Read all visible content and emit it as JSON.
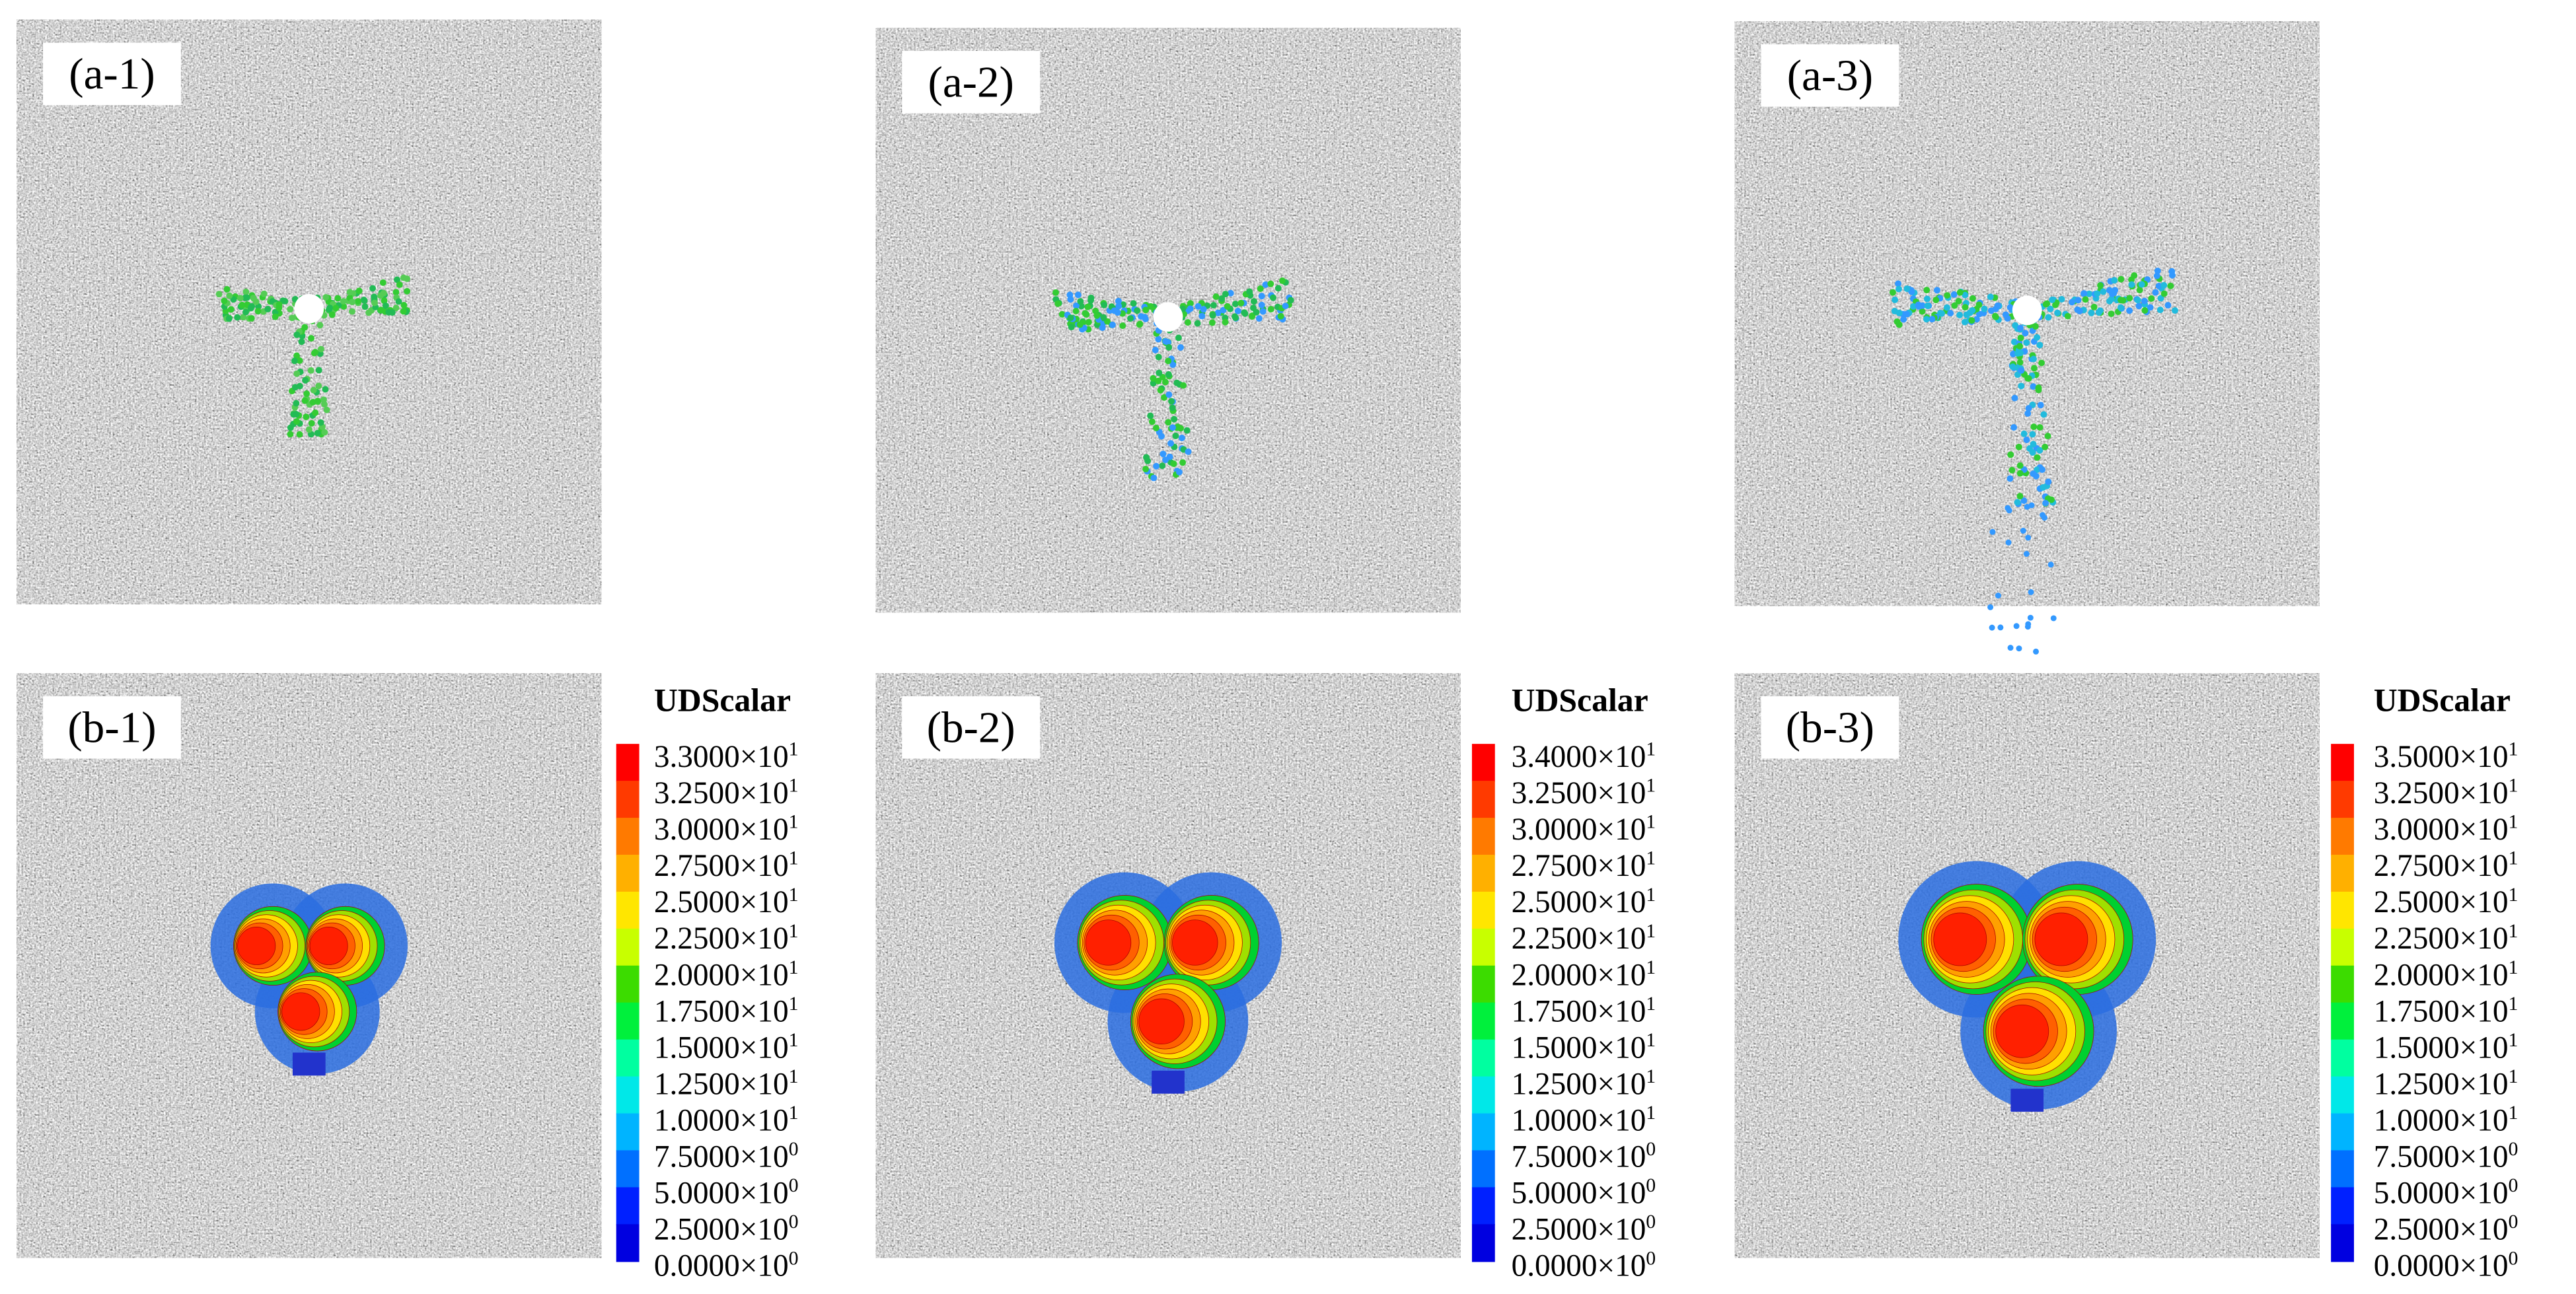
{
  "panels": [
    {
      "label": "(a-1)"
    },
    {
      "label": "(a-2)"
    },
    {
      "label": "(a-3)"
    },
    {
      "label": "(b-1)"
    },
    {
      "label": "(b-2)"
    },
    {
      "label": "(b-3)"
    }
  ],
  "colorbars": [
    {
      "title": "UDScalar",
      "ticks": [
        {
          "mantissa": "3.3000×10",
          "exponent": "1"
        },
        {
          "mantissa": "3.2500×10",
          "exponent": "1"
        },
        {
          "mantissa": "3.0000×10",
          "exponent": "1"
        },
        {
          "mantissa": "2.7500×10",
          "exponent": "1"
        },
        {
          "mantissa": "2.5000×10",
          "exponent": "1"
        },
        {
          "mantissa": "2.2500×10",
          "exponent": "1"
        },
        {
          "mantissa": "2.0000×10",
          "exponent": "1"
        },
        {
          "mantissa": "1.7500×10",
          "exponent": "1"
        },
        {
          "mantissa": "1.5000×10",
          "exponent": "1"
        },
        {
          "mantissa": "1.2500×10",
          "exponent": "1"
        },
        {
          "mantissa": "1.0000×10",
          "exponent": "1"
        },
        {
          "mantissa": "7.5000×10",
          "exponent": "0"
        },
        {
          "mantissa": "5.0000×10",
          "exponent": "0"
        },
        {
          "mantissa": "2.5000×10",
          "exponent": "0"
        },
        {
          "mantissa": "0.0000×10",
          "exponent": "0"
        }
      ]
    },
    {
      "title": "UDScalar",
      "ticks": [
        {
          "mantissa": "3.4000×10",
          "exponent": "1"
        },
        {
          "mantissa": "3.2500×10",
          "exponent": "1"
        },
        {
          "mantissa": "3.0000×10",
          "exponent": "1"
        },
        {
          "mantissa": "2.7500×10",
          "exponent": "1"
        },
        {
          "mantissa": "2.5000×10",
          "exponent": "1"
        },
        {
          "mantissa": "2.2500×10",
          "exponent": "1"
        },
        {
          "mantissa": "2.0000×10",
          "exponent": "1"
        },
        {
          "mantissa": "1.7500×10",
          "exponent": "1"
        },
        {
          "mantissa": "1.5000×10",
          "exponent": "1"
        },
        {
          "mantissa": "1.2500×10",
          "exponent": "1"
        },
        {
          "mantissa": "1.0000×10",
          "exponent": "1"
        },
        {
          "mantissa": "7.5000×10",
          "exponent": "0"
        },
        {
          "mantissa": "5.0000×10",
          "exponent": "0"
        },
        {
          "mantissa": "2.5000×10",
          "exponent": "0"
        },
        {
          "mantissa": "0.0000×10",
          "exponent": "0"
        }
      ]
    },
    {
      "title": "UDScalar",
      "ticks": [
        {
          "mantissa": "3.5000×10",
          "exponent": "1"
        },
        {
          "mantissa": "3.2500×10",
          "exponent": "1"
        },
        {
          "mantissa": "3.0000×10",
          "exponent": "1"
        },
        {
          "mantissa": "2.7500×10",
          "exponent": "1"
        },
        {
          "mantissa": "2.5000×10",
          "exponent": "1"
        },
        {
          "mantissa": "2.2500×10",
          "exponent": "1"
        },
        {
          "mantissa": "2.0000×10",
          "exponent": "1"
        },
        {
          "mantissa": "1.7500×10",
          "exponent": "1"
        },
        {
          "mantissa": "1.5000×10",
          "exponent": "1"
        },
        {
          "mantissa": "1.2500×10",
          "exponent": "1"
        },
        {
          "mantissa": "1.0000×10",
          "exponent": "1"
        },
        {
          "mantissa": "7.5000×10",
          "exponent": "0"
        },
        {
          "mantissa": "5.0000×10",
          "exponent": "0"
        },
        {
          "mantissa": "2.5000×10",
          "exponent": "0"
        },
        {
          "mantissa": "0.0000×10",
          "exponent": "0"
        }
      ]
    }
  ]
}
